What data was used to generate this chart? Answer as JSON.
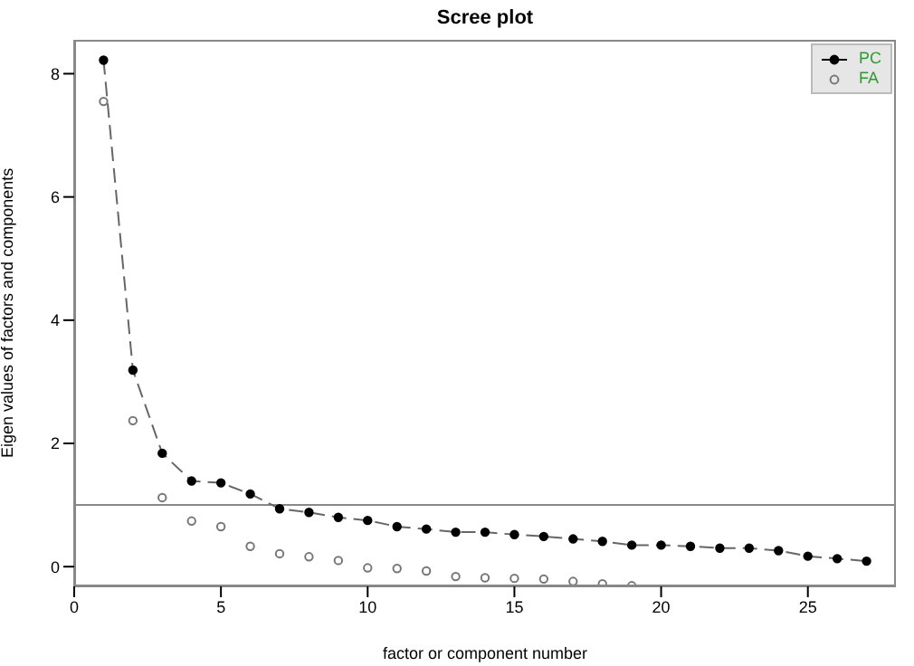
{
  "chart_data": {
    "type": "line",
    "title": "Scree plot",
    "xlabel": "factor or component number",
    "ylabel": "Eigen values of factors and components",
    "x": [
      1,
      2,
      3,
      4,
      5,
      6,
      7,
      8,
      9,
      10,
      11,
      12,
      13,
      14,
      15,
      16,
      17,
      18,
      19,
      20,
      21,
      22,
      23,
      24,
      25,
      26,
      27
    ],
    "series": [
      {
        "name": "PC",
        "color": "#000000",
        "line_style": "dashed",
        "values": [
          8.22,
          3.19,
          1.84,
          1.39,
          1.36,
          1.18,
          0.94,
          0.88,
          0.8,
          0.75,
          0.65,
          0.61,
          0.56,
          0.56,
          0.52,
          0.49,
          0.45,
          0.41,
          0.35,
          0.35,
          0.33,
          0.3,
          0.3,
          0.26,
          0.17,
          0.13,
          0.09
        ]
      },
      {
        "name": "FA",
        "type": "scatter",
        "color": "#777777",
        "values": [
          7.55,
          2.37,
          1.12,
          0.74,
          0.65,
          0.33,
          0.21,
          0.16,
          0.1,
          -0.02,
          -0.03,
          -0.07,
          -0.16,
          -0.18,
          -0.19,
          -0.2,
          -0.24,
          -0.28,
          -0.31,
          null,
          null,
          null,
          null,
          null,
          null,
          null,
          null
        ]
      }
    ],
    "xlim": [
      0,
      28
    ],
    "xticks": [
      0,
      5,
      10,
      15,
      20,
      25
    ],
    "ylim": [
      -0.32,
      8.55
    ],
    "yticks": [
      0,
      2,
      4,
      6,
      8
    ],
    "ref_lines": [
      {
        "axis": "y",
        "value": 1,
        "color": "#888888"
      }
    ],
    "marker": "circle",
    "grid": false,
    "legend": "top right"
  }
}
